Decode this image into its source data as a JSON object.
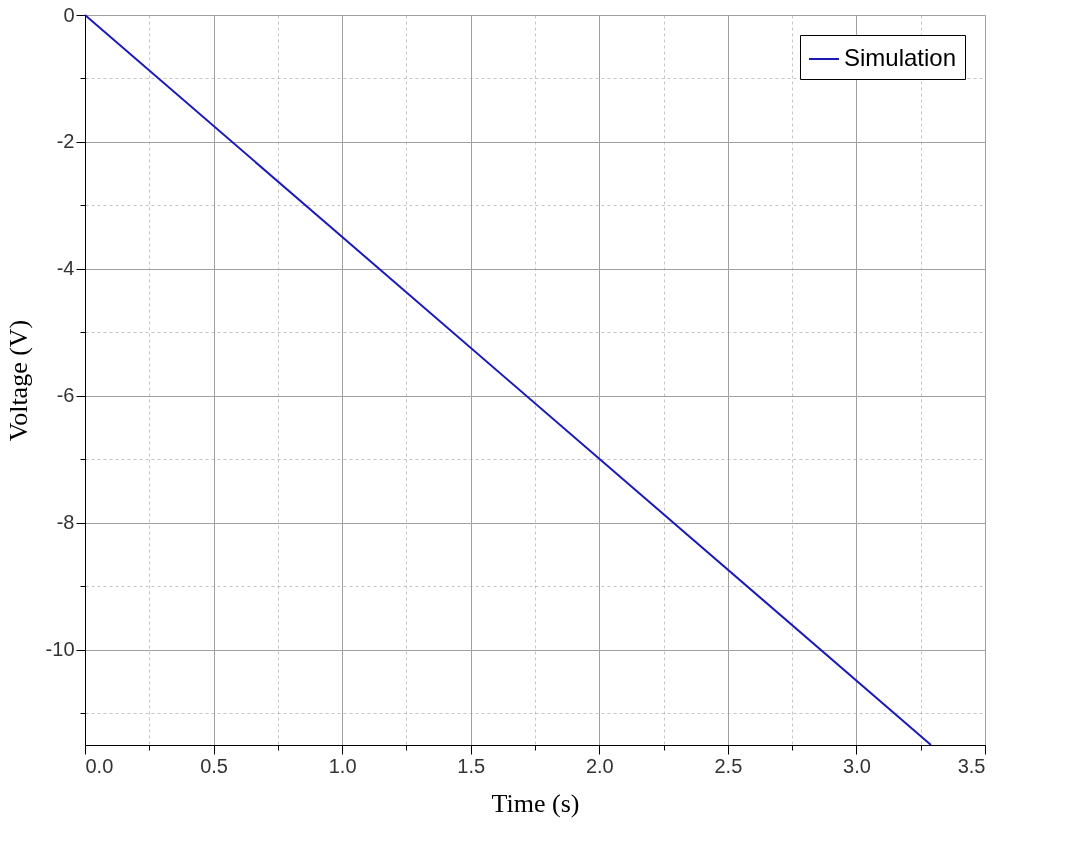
{
  "chart_data": {
    "type": "line",
    "xlabel": "Time (s)",
    "ylabel": "Voltage (V)",
    "series": [
      {
        "name": "Simulation",
        "color": "#1a1ab8",
        "x": [
          0,
          3.29
        ],
        "values": [
          0,
          -11.5
        ]
      }
    ],
    "xlim": [
      0,
      3.5
    ],
    "ylim": [
      -11.5,
      0
    ],
    "xticks": [
      {
        "value": 0,
        "label": "0.0"
      },
      {
        "value": 0.25,
        "label": null
      },
      {
        "value": 0.5,
        "label": "0.5"
      },
      {
        "value": 0.75,
        "label": null
      },
      {
        "value": 1,
        "label": "1.0"
      },
      {
        "value": 1.25,
        "label": null
      },
      {
        "value": 1.5,
        "label": "1.5"
      },
      {
        "value": 1.75,
        "label": null
      },
      {
        "value": 2,
        "label": "2.0"
      },
      {
        "value": 2.25,
        "label": null
      },
      {
        "value": 2.5,
        "label": "2.5"
      },
      {
        "value": 2.75,
        "label": null
      },
      {
        "value": 3,
        "label": "3.0"
      },
      {
        "value": 3.25,
        "label": null
      },
      {
        "value": 3.5,
        "label": "3.5"
      }
    ],
    "yticks": [
      0,
      {
        "value": -1,
        "label": null
      },
      -2,
      {
        "value": -3,
        "label": null
      },
      -4,
      {
        "value": -5,
        "label": null
      },
      -6,
      {
        "value": -7,
        "label": null
      },
      -8,
      {
        "value": -9,
        "label": null
      },
      -10,
      {
        "value": -11,
        "label": null
      }
    ],
    "grid": true,
    "legend": "top right",
    "marker": "none",
    "line_style": "solid"
  }
}
